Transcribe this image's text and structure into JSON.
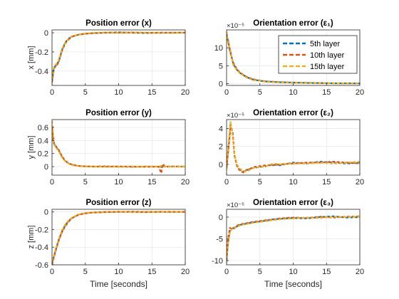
{
  "figure": {
    "series_names": [
      "5th layer",
      "10th layer",
      "15th layer"
    ],
    "colors": {
      "5th layer": "#0072BD",
      "10th layer": "#D95319",
      "15th layer": "#EDB120"
    },
    "axes_color": "#262626",
    "grid_color": "#e2e2e2"
  },
  "chart_data": [
    {
      "type": "line",
      "title": "Position error (x)",
      "xlabel": "",
      "ylabel": "x [mm]",
      "xlim": [
        0,
        20
      ],
      "ylim": [
        -0.55,
        0.03
      ],
      "xticks": [
        0,
        5,
        10,
        15,
        20
      ],
      "yticks": [
        -0.4,
        -0.2,
        0
      ],
      "xtick_labels": [
        "0",
        "5",
        "10",
        "15",
        "20"
      ],
      "ytick_labels": [
        "-0.4",
        "-0.2",
        "0"
      ],
      "exponent_label": "",
      "grid": true,
      "legend": false,
      "x": [
        0,
        0.3,
        0.6,
        1.0,
        1.5,
        2.0,
        2.5,
        3.0,
        4.0,
        5.0,
        6.0,
        8.0,
        10.0,
        12.0,
        14.0,
        16.0,
        18.0,
        20.0
      ],
      "series": [
        {
          "name": "5th layer",
          "values": [
            -0.5,
            -0.36,
            -0.34,
            -0.3,
            -0.18,
            -0.1,
            -0.06,
            -0.04,
            -0.02,
            -0.01,
            -0.005,
            0,
            0.005,
            0,
            -0.003,
            0.002,
            0,
            0.002
          ]
        },
        {
          "name": "10th layer",
          "values": [
            -0.52,
            -0.37,
            -0.35,
            -0.31,
            -0.19,
            -0.11,
            -0.07,
            -0.04,
            -0.02,
            -0.01,
            -0.004,
            0.002,
            0,
            0.003,
            0,
            -0.002,
            0.002,
            0
          ]
        },
        {
          "name": "15th layer",
          "values": [
            -0.48,
            -0.35,
            -0.33,
            -0.29,
            -0.17,
            -0.1,
            -0.06,
            -0.035,
            -0.018,
            -0.008,
            -0.002,
            0.003,
            -0.002,
            0,
            0.002,
            0,
            -0.002,
            0.001
          ]
        }
      ]
    },
    {
      "type": "line",
      "title": "Orientation error (ε₁)",
      "xlabel": "",
      "ylabel": "",
      "xlim": [
        0,
        20
      ],
      "ylim": [
        -0.5,
        15
      ],
      "xticks": [
        0,
        5,
        10,
        15,
        20
      ],
      "yticks": [
        0,
        5,
        10
      ],
      "xtick_labels": [
        "0",
        "5",
        "10",
        "15",
        "20"
      ],
      "ytick_labels": [
        "0",
        "5",
        "10"
      ],
      "exponent_label": "×10⁻⁵",
      "grid": true,
      "legend": true,
      "legend_position": "top-right",
      "x": [
        0,
        0.2,
        0.5,
        1.0,
        1.5,
        2.0,
        3.0,
        4.0,
        5.0,
        6.0,
        8.0,
        10.0,
        12.0,
        14.0,
        16.0,
        18.0,
        20.0
      ],
      "series": [
        {
          "name": "5th layer",
          "values": [
            14,
            12,
            9.5,
            5.5,
            4.0,
            3.0,
            1.8,
            1.1,
            0.8,
            0.6,
            0.4,
            0.3,
            0.2,
            0.15,
            0.1,
            0.1,
            0.05
          ]
        },
        {
          "name": "10th layer",
          "values": [
            13.5,
            12.5,
            9.0,
            5.8,
            4.2,
            3.1,
            1.9,
            1.2,
            0.9,
            0.6,
            0.45,
            0.3,
            0.25,
            0.15,
            0.1,
            0.05,
            0.1
          ]
        },
        {
          "name": "15th layer",
          "values": [
            14.5,
            11.5,
            10.0,
            5.2,
            3.9,
            2.9,
            1.7,
            1.0,
            0.8,
            0.5,
            0.35,
            0.25,
            0.2,
            0.1,
            0.1,
            0.05,
            0.05
          ]
        }
      ]
    },
    {
      "type": "line",
      "title": "Position error (y)",
      "xlabel": "",
      "ylabel": "y [mm]",
      "xlim": [
        0,
        20
      ],
      "ylim": [
        -0.13,
        0.72
      ],
      "xticks": [
        0,
        5,
        10,
        15,
        20
      ],
      "yticks": [
        0,
        0.2,
        0.4,
        0.6
      ],
      "xtick_labels": [
        "0",
        "5",
        "10",
        "15",
        "20"
      ],
      "ytick_labels": [
        "0",
        "0.2",
        "0.4",
        "0.6"
      ],
      "exponent_label": "",
      "grid": true,
      "legend": false,
      "x": [
        0,
        0.3,
        0.6,
        1.0,
        1.5,
        2.0,
        2.5,
        3.0,
        4.0,
        5.0,
        6.0,
        8.0,
        10.0,
        12.0,
        14.0,
        16.0,
        16.4,
        16.6,
        17.0,
        18.0,
        20.0
      ],
      "series": [
        {
          "name": "5th layer",
          "values": [
            0.5,
            0.35,
            0.3,
            0.25,
            0.15,
            0.08,
            0.05,
            0.03,
            0.01,
            0.005,
            0,
            0.005,
            0,
            -0.003,
            0.002,
            0,
            0,
            0.005,
            0,
            0.003,
            0
          ]
        },
        {
          "name": "10th layer",
          "values": [
            0.6,
            0.36,
            0.31,
            0.26,
            0.16,
            0.09,
            0.05,
            0.03,
            0.012,
            0.004,
            0.002,
            0,
            0.003,
            0,
            -0.002,
            0,
            -0.1,
            0.04,
            0,
            0.002,
            0.001
          ]
        },
        {
          "name": "15th layer",
          "values": [
            0.7,
            0.34,
            0.29,
            0.24,
            0.14,
            0.08,
            0.045,
            0.025,
            0.01,
            0.003,
            0.002,
            -0.002,
            0,
            0.002,
            0,
            0.002,
            0.01,
            0,
            0.002,
            0,
            0.002
          ]
        }
      ]
    },
    {
      "type": "line",
      "title": "Orientation error (ε₂)",
      "xlabel": "",
      "ylabel": "",
      "xlim": [
        0,
        20
      ],
      "ylim": [
        -1.2,
        5
      ],
      "xticks": [
        0,
        5,
        10,
        15,
        20
      ],
      "yticks": [
        0,
        2,
        4
      ],
      "xtick_labels": [
        "0",
        "5",
        "10",
        "15",
        "20"
      ],
      "ytick_labels": [
        "0",
        "2",
        "4"
      ],
      "exponent_label": "×10⁻⁵",
      "grid": true,
      "legend": false,
      "x": [
        0,
        0.3,
        0.6,
        0.9,
        1.2,
        1.6,
        2.0,
        2.5,
        3.0,
        3.5,
        4.0,
        5.0,
        6.0,
        7.0,
        8.0,
        10.0,
        12.0,
        14.0,
        16.0,
        18.0,
        20.0
      ],
      "series": [
        {
          "name": "5th layer",
          "values": [
            -0.5,
            2.0,
            4.6,
            3.5,
            1.0,
            -0.2,
            -0.6,
            -0.8,
            -0.7,
            -0.5,
            -0.4,
            -0.3,
            -0.2,
            0,
            -0.1,
            0.2,
            0.1,
            0.3,
            0.2,
            0.1,
            0.2
          ]
        },
        {
          "name": "10th layer",
          "values": [
            -0.3,
            1.8,
            4.2,
            3.7,
            0.9,
            -0.3,
            -0.7,
            -0.9,
            -0.6,
            -0.5,
            -0.3,
            -0.2,
            -0.1,
            -0.1,
            0,
            0.1,
            0.2,
            0.2,
            0.3,
            0.2,
            0.1
          ]
        },
        {
          "name": "15th layer",
          "values": [
            -0.6,
            2.2,
            4.8,
            3.2,
            1.1,
            -0.1,
            -0.5,
            -0.7,
            -0.8,
            -0.6,
            -0.4,
            -0.3,
            -0.2,
            0.1,
            0,
            0.1,
            0.1,
            0.2,
            0.1,
            0.2,
            0.3
          ]
        }
      ]
    },
    {
      "type": "line",
      "title": "Position error (z)",
      "xlabel": "Time [seconds]",
      "ylabel": "z [mm]",
      "xlim": [
        0,
        20
      ],
      "ylim": [
        -0.6,
        0.03
      ],
      "xticks": [
        0,
        5,
        10,
        15,
        20
      ],
      "yticks": [
        -0.6,
        -0.4,
        -0.2,
        0
      ],
      "xtick_labels": [
        "0",
        "5",
        "10",
        "15",
        "20"
      ],
      "ytick_labels": [
        "-0.6",
        "-0.4",
        "-0.2",
        "0"
      ],
      "exponent_label": "",
      "grid": true,
      "legend": false,
      "x": [
        0,
        0.3,
        0.6,
        1.0,
        1.5,
        2.0,
        2.5,
        3.0,
        4.0,
        5.0,
        6.0,
        8.0,
        10.0,
        12.0,
        14.0,
        16.0,
        18.0,
        20.0
      ],
      "series": [
        {
          "name": "5th layer",
          "values": [
            -0.58,
            -0.5,
            -0.42,
            -0.32,
            -0.22,
            -0.15,
            -0.1,
            -0.07,
            -0.03,
            -0.015,
            -0.008,
            -0.002,
            0,
            0.003,
            0,
            0.002,
            0,
            0.002
          ]
        },
        {
          "name": "10th layer",
          "values": [
            -0.6,
            -0.51,
            -0.43,
            -0.33,
            -0.23,
            -0.16,
            -0.11,
            -0.07,
            -0.032,
            -0.016,
            -0.007,
            0,
            0.002,
            0,
            -0.002,
            0.001,
            0.002,
            0
          ]
        },
        {
          "name": "15th layer",
          "values": [
            -0.56,
            -0.49,
            -0.41,
            -0.31,
            -0.21,
            -0.14,
            -0.095,
            -0.065,
            -0.028,
            -0.013,
            -0.006,
            -0.001,
            0.002,
            0.001,
            0.002,
            0,
            0.001,
            0.002
          ]
        }
      ]
    },
    {
      "type": "line",
      "title": "Orientation error (ε₃)",
      "xlabel": "Time [seconds]",
      "ylabel": "",
      "xlim": [
        0,
        20
      ],
      "ylim": [
        -11,
        1.8
      ],
      "xticks": [
        0,
        5,
        10,
        15,
        20
      ],
      "yticks": [
        -10,
        -5,
        0
      ],
      "xtick_labels": [
        "0",
        "5",
        "10",
        "15",
        "20"
      ],
      "ytick_labels": [
        "-10",
        "-5",
        "0"
      ],
      "exponent_label": "×10⁻⁵",
      "grid": true,
      "legend": false,
      "x": [
        0,
        0.2,
        0.5,
        1.0,
        1.5,
        2.0,
        3.0,
        4.0,
        5.0,
        6.0,
        7.0,
        8.0,
        10.0,
        12.0,
        14.0,
        16.0,
        18.0,
        20.0
      ],
      "series": [
        {
          "name": "5th layer",
          "values": [
            -10,
            -6,
            -3,
            -2.5,
            -2.2,
            -1.8,
            -1.5,
            -1.2,
            -1.0,
            -0.8,
            -0.5,
            -0.4,
            -0.2,
            -0.3,
            0,
            0.2,
            -0.1,
            0
          ]
        },
        {
          "name": "10th layer",
          "values": [
            -9,
            -5,
            -2.5,
            -2.8,
            -2.0,
            -1.7,
            -1.4,
            -1.1,
            -0.9,
            -0.7,
            -0.6,
            -0.3,
            -0.1,
            -0.2,
            0.1,
            -0.1,
            0.1,
            0.2
          ]
        },
        {
          "name": "15th layer",
          "values": [
            -10.5,
            -6.5,
            -3.5,
            -2.3,
            -2.4,
            -1.9,
            -1.6,
            -1.3,
            -1.1,
            -0.9,
            -0.7,
            -0.5,
            -0.3,
            -0.1,
            -0.2,
            0.1,
            0,
            0.1
          ]
        }
      ]
    }
  ]
}
